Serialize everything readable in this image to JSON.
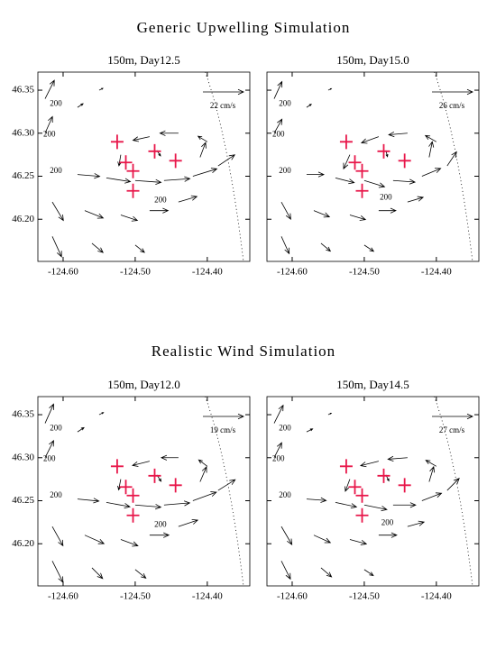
{
  "headings": [
    "Generic Upwelling Simulation",
    "Realistic Wind Simulation"
  ],
  "chart_data": [
    {
      "type": "quiver",
      "title": "150m, Day12.5",
      "xlim": [
        -124.635,
        -124.341
      ],
      "ylim": [
        46.151,
        46.371
      ],
      "xticks": [
        {
          "value": -124.6,
          "label": "-124.60"
        },
        {
          "value": -124.5,
          "label": "-124.50"
        },
        {
          "value": -124.4,
          "label": "-124.40"
        }
      ],
      "yticks": [
        {
          "value": 46.2,
          "label": "46.20"
        },
        46.25,
        {
          "value": 46.3,
          "label": "46.30"
        },
        46.35
      ],
      "reference": {
        "value": 22,
        "label": "22 cm/s"
      },
      "vector_color": "#000000",
      "vectors": {
        "x": [
          -124.625,
          -124.625,
          -124.615,
          -124.615,
          -124.58,
          -124.54,
          -124.5,
          -124.46,
          -124.42,
          -124.385,
          -124.57,
          -124.52,
          -124.48,
          -124.44,
          -124.56,
          -124.5,
          -124.44,
          -124.48,
          -124.4,
          -124.41,
          -124.52,
          -124.47,
          -124.58,
          -124.55
        ],
        "y": [
          46.34,
          46.3,
          46.22,
          46.18,
          46.252,
          46.248,
          46.245,
          46.245,
          46.25,
          46.262,
          46.21,
          46.205,
          46.21,
          46.22,
          46.172,
          46.17,
          46.3,
          46.296,
          46.29,
          46.272,
          46.275,
          46.28,
          46.33,
          46.35
        ],
        "u": [
          5,
          4,
          6,
          5,
          12,
          13,
          14,
          14,
          13,
          9,
          10,
          9,
          10,
          10,
          6,
          5,
          -10,
          -9,
          -5,
          3,
          -1,
          2,
          3,
          2
        ],
        "v": [
          10,
          9,
          -10,
          -11,
          -1,
          -2,
          -1,
          1,
          4,
          6,
          -4,
          -3,
          0,
          3,
          -5,
          -4,
          0,
          -2,
          3,
          8,
          -6,
          -3,
          2,
          1
        ]
      },
      "markers": {
        "x": [
          -124.525,
          -124.513,
          -124.503,
          -124.473,
          -124.444,
          -124.503
        ],
        "y": [
          46.29,
          46.266,
          46.256,
          46.279,
          46.268,
          46.233
        ],
        "color": "#e8174a"
      },
      "contour_labels": {
        "text": [
          "200",
          "200",
          "200",
          "200"
        ],
        "x": [
          -124.61,
          -124.619,
          -124.61,
          -124.465
        ],
        "y": [
          46.334,
          46.298,
          46.256,
          46.222
        ]
      }
    },
    {
      "type": "quiver",
      "title": "150m, Day15.0",
      "xlim": [
        -124.635,
        -124.341
      ],
      "ylim": [
        46.151,
        46.371
      ],
      "xticks": [
        {
          "value": -124.6,
          "label": "-124.60"
        },
        {
          "value": -124.5,
          "label": "-124.50"
        },
        {
          "value": -124.4,
          "label": "-124.40"
        }
      ],
      "yticks": [
        46.2,
        46.25,
        46.3,
        46.35
      ],
      "reference": {
        "value": 26,
        "label": "26 cm/s"
      },
      "vector_color": "#000000",
      "vectors": {
        "x": [
          -124.625,
          -124.625,
          -124.615,
          -124.615,
          -124.58,
          -124.54,
          -124.5,
          -124.46,
          -124.42,
          -124.385,
          -124.57,
          -124.52,
          -124.48,
          -124.44,
          -124.56,
          -124.5,
          -124.44,
          -124.48,
          -124.4,
          -124.41,
          -124.52,
          -124.47,
          -124.58,
          -124.55
        ],
        "y": [
          46.34,
          46.3,
          46.22,
          46.18,
          46.252,
          46.248,
          46.245,
          46.245,
          46.25,
          46.262,
          46.21,
          46.205,
          46.21,
          46.22,
          46.172,
          46.17,
          46.3,
          46.296,
          46.29,
          46.272,
          46.275,
          46.28,
          46.33,
          46.35
        ],
        "u": [
          5,
          5,
          6,
          5,
          11,
          12,
          13,
          14,
          12,
          6,
          10,
          10,
          11,
          10,
          6,
          6,
          -12,
          -11,
          -7,
          2,
          -4,
          1,
          3,
          2
        ],
        "v": [
          11,
          9,
          -11,
          -11,
          0,
          -3,
          -4,
          -1,
          5,
          9,
          -4,
          -3,
          0,
          3,
          -5,
          -4,
          -1,
          -4,
          4,
          10,
          -9,
          -4,
          2,
          1
        ]
      },
      "markers": {
        "x": [
          -124.525,
          -124.513,
          -124.503,
          -124.473,
          -124.444,
          -124.503
        ],
        "y": [
          46.29,
          46.266,
          46.256,
          46.279,
          46.268,
          46.233
        ],
        "color": "#e8174a"
      },
      "contour_labels": {
        "text": [
          "200",
          "200",
          "200",
          "200"
        ],
        "x": [
          -124.61,
          -124.619,
          -124.61,
          -124.47
        ],
        "y": [
          46.334,
          46.298,
          46.256,
          46.225
        ]
      }
    },
    {
      "type": "quiver",
      "title": "150m, Day12.0",
      "xlim": [
        -124.635,
        -124.341
      ],
      "ylim": [
        46.151,
        46.371
      ],
      "xticks": [
        {
          "value": -124.6,
          "label": "-124.60"
        },
        {
          "value": -124.5,
          "label": "-124.50"
        },
        {
          "value": -124.4,
          "label": "-124.40"
        }
      ],
      "yticks": [
        {
          "value": 46.2,
          "label": "46.20"
        },
        46.25,
        {
          "value": 46.3,
          "label": "46.30"
        },
        46.35
      ],
      "reference": {
        "value": 19,
        "label": "19 cm/s"
      },
      "vector_color": "#000000",
      "vectors": {
        "x": [
          -124.625,
          -124.625,
          -124.615,
          -124.615,
          -124.58,
          -124.54,
          -124.5,
          -124.46,
          -124.42,
          -124.385,
          -124.57,
          -124.52,
          -124.48,
          -124.44,
          -124.56,
          -124.5,
          -124.44,
          -124.48,
          -124.4,
          -124.41,
          -124.52,
          -124.47,
          -124.58,
          -124.55
        ],
        "y": [
          46.34,
          46.3,
          46.22,
          46.18,
          46.252,
          46.248,
          46.245,
          46.245,
          46.25,
          46.262,
          46.21,
          46.205,
          46.21,
          46.22,
          46.172,
          46.17,
          46.3,
          46.296,
          46.29,
          46.272,
          46.275,
          46.28,
          46.33,
          46.35
        ],
        "u": [
          4,
          4,
          5,
          5,
          10,
          11,
          12,
          12,
          11,
          8,
          9,
          8,
          9,
          9,
          5,
          5,
          -8,
          -8,
          -4,
          3,
          -1,
          2,
          3,
          2
        ],
        "v": [
          9,
          8,
          -9,
          -10,
          -1,
          -2,
          -1,
          1,
          4,
          5,
          -4,
          -3,
          0,
          3,
          -5,
          -4,
          0,
          -2,
          3,
          7,
          -5,
          -3,
          2,
          1
        ]
      },
      "markers": {
        "x": [
          -124.525,
          -124.513,
          -124.503,
          -124.473,
          -124.444,
          -124.503
        ],
        "y": [
          46.29,
          46.266,
          46.256,
          46.279,
          46.268,
          46.233
        ],
        "color": "#e8174a"
      },
      "contour_labels": {
        "text": [
          "200",
          "200",
          "200",
          "200"
        ],
        "x": [
          -124.61,
          -124.619,
          -124.61,
          -124.465
        ],
        "y": [
          46.334,
          46.298,
          46.256,
          46.222
        ]
      }
    },
    {
      "type": "quiver",
      "title": "150m, Day14.5",
      "xlim": [
        -124.635,
        -124.341
      ],
      "ylim": [
        46.151,
        46.371
      ],
      "xticks": [
        {
          "value": -124.6,
          "label": "-124.60"
        },
        {
          "value": -124.5,
          "label": "-124.50"
        },
        {
          "value": -124.4,
          "label": "-124.40"
        }
      ],
      "yticks": [
        46.2,
        46.25,
        46.3,
        46.35
      ],
      "reference": {
        "value": 27,
        "label": "27 cm/s"
      },
      "vector_color": "#000000",
      "vectors": {
        "x": [
          -124.625,
          -124.625,
          -124.615,
          -124.615,
          -124.58,
          -124.54,
          -124.5,
          -124.46,
          -124.42,
          -124.385,
          -124.57,
          -124.52,
          -124.48,
          -124.44,
          -124.56,
          -124.5,
          -124.44,
          -124.48,
          -124.4,
          -124.41,
          -124.52,
          -124.47,
          -124.58,
          -124.55
        ],
        "y": [
          46.34,
          46.3,
          46.22,
          46.18,
          46.252,
          46.248,
          46.245,
          46.245,
          46.25,
          46.262,
          46.21,
          46.205,
          46.21,
          46.22,
          46.172,
          46.17,
          46.3,
          46.296,
          46.29,
          46.272,
          46.275,
          46.28,
          46.33,
          46.35
        ],
        "u": [
          6,
          5,
          7,
          6,
          13,
          14,
          15,
          15,
          13,
          8,
          11,
          11,
          12,
          11,
          7,
          6,
          -13,
          -12,
          -7,
          3,
          -3,
          2,
          4,
          2
        ],
        "v": [
          12,
          10,
          -12,
          -12,
          -1,
          -3,
          -3,
          0,
          5,
          8,
          -5,
          -3,
          0,
          3,
          -6,
          -4,
          -1,
          -3,
          4,
          10,
          -8,
          -4,
          2,
          1
        ]
      },
      "markers": {
        "x": [
          -124.525,
          -124.513,
          -124.503,
          -124.473,
          -124.444,
          -124.503
        ],
        "y": [
          46.29,
          46.266,
          46.256,
          46.279,
          46.268,
          46.233
        ],
        "color": "#e8174a"
      },
      "contour_labels": {
        "text": [
          "200",
          "200",
          "200",
          "200"
        ],
        "x": [
          -124.61,
          -124.619,
          -124.61,
          -124.468
        ],
        "y": [
          46.334,
          46.298,
          46.256,
          46.224
        ]
      }
    }
  ]
}
